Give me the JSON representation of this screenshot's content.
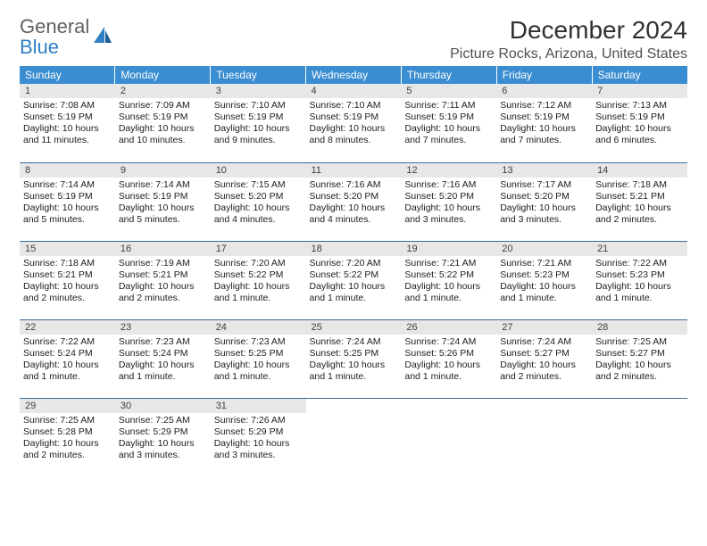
{
  "logo": {
    "line1": "General",
    "line2": "Blue"
  },
  "title": "December 2024",
  "location": "Picture Rocks, Arizona, United States",
  "day_headers": [
    "Sunday",
    "Monday",
    "Tuesday",
    "Wednesday",
    "Thursday",
    "Friday",
    "Saturday"
  ],
  "colors": {
    "header_bg": "#3a8dd0",
    "header_text": "#ffffff",
    "daynum_bg": "#e7e7e7",
    "row_divider": "#3a6d9b",
    "logo_gray": "#606060",
    "logo_blue": "#2f7fc4"
  },
  "weeks": [
    [
      {
        "num": "1",
        "sunrise": "Sunrise: 7:08 AM",
        "sunset": "Sunset: 5:19 PM",
        "daylight": "Daylight: 10 hours and 11 minutes."
      },
      {
        "num": "2",
        "sunrise": "Sunrise: 7:09 AM",
        "sunset": "Sunset: 5:19 PM",
        "daylight": "Daylight: 10 hours and 10 minutes."
      },
      {
        "num": "3",
        "sunrise": "Sunrise: 7:10 AM",
        "sunset": "Sunset: 5:19 PM",
        "daylight": "Daylight: 10 hours and 9 minutes."
      },
      {
        "num": "4",
        "sunrise": "Sunrise: 7:10 AM",
        "sunset": "Sunset: 5:19 PM",
        "daylight": "Daylight: 10 hours and 8 minutes."
      },
      {
        "num": "5",
        "sunrise": "Sunrise: 7:11 AM",
        "sunset": "Sunset: 5:19 PM",
        "daylight": "Daylight: 10 hours and 7 minutes."
      },
      {
        "num": "6",
        "sunrise": "Sunrise: 7:12 AM",
        "sunset": "Sunset: 5:19 PM",
        "daylight": "Daylight: 10 hours and 7 minutes."
      },
      {
        "num": "7",
        "sunrise": "Sunrise: 7:13 AM",
        "sunset": "Sunset: 5:19 PM",
        "daylight": "Daylight: 10 hours and 6 minutes."
      }
    ],
    [
      {
        "num": "8",
        "sunrise": "Sunrise: 7:14 AM",
        "sunset": "Sunset: 5:19 PM",
        "daylight": "Daylight: 10 hours and 5 minutes."
      },
      {
        "num": "9",
        "sunrise": "Sunrise: 7:14 AM",
        "sunset": "Sunset: 5:19 PM",
        "daylight": "Daylight: 10 hours and 5 minutes."
      },
      {
        "num": "10",
        "sunrise": "Sunrise: 7:15 AM",
        "sunset": "Sunset: 5:20 PM",
        "daylight": "Daylight: 10 hours and 4 minutes."
      },
      {
        "num": "11",
        "sunrise": "Sunrise: 7:16 AM",
        "sunset": "Sunset: 5:20 PM",
        "daylight": "Daylight: 10 hours and 4 minutes."
      },
      {
        "num": "12",
        "sunrise": "Sunrise: 7:16 AM",
        "sunset": "Sunset: 5:20 PM",
        "daylight": "Daylight: 10 hours and 3 minutes."
      },
      {
        "num": "13",
        "sunrise": "Sunrise: 7:17 AM",
        "sunset": "Sunset: 5:20 PM",
        "daylight": "Daylight: 10 hours and 3 minutes."
      },
      {
        "num": "14",
        "sunrise": "Sunrise: 7:18 AM",
        "sunset": "Sunset: 5:21 PM",
        "daylight": "Daylight: 10 hours and 2 minutes."
      }
    ],
    [
      {
        "num": "15",
        "sunrise": "Sunrise: 7:18 AM",
        "sunset": "Sunset: 5:21 PM",
        "daylight": "Daylight: 10 hours and 2 minutes."
      },
      {
        "num": "16",
        "sunrise": "Sunrise: 7:19 AM",
        "sunset": "Sunset: 5:21 PM",
        "daylight": "Daylight: 10 hours and 2 minutes."
      },
      {
        "num": "17",
        "sunrise": "Sunrise: 7:20 AM",
        "sunset": "Sunset: 5:22 PM",
        "daylight": "Daylight: 10 hours and 1 minute."
      },
      {
        "num": "18",
        "sunrise": "Sunrise: 7:20 AM",
        "sunset": "Sunset: 5:22 PM",
        "daylight": "Daylight: 10 hours and 1 minute."
      },
      {
        "num": "19",
        "sunrise": "Sunrise: 7:21 AM",
        "sunset": "Sunset: 5:22 PM",
        "daylight": "Daylight: 10 hours and 1 minute."
      },
      {
        "num": "20",
        "sunrise": "Sunrise: 7:21 AM",
        "sunset": "Sunset: 5:23 PM",
        "daylight": "Daylight: 10 hours and 1 minute."
      },
      {
        "num": "21",
        "sunrise": "Sunrise: 7:22 AM",
        "sunset": "Sunset: 5:23 PM",
        "daylight": "Daylight: 10 hours and 1 minute."
      }
    ],
    [
      {
        "num": "22",
        "sunrise": "Sunrise: 7:22 AM",
        "sunset": "Sunset: 5:24 PM",
        "daylight": "Daylight: 10 hours and 1 minute."
      },
      {
        "num": "23",
        "sunrise": "Sunrise: 7:23 AM",
        "sunset": "Sunset: 5:24 PM",
        "daylight": "Daylight: 10 hours and 1 minute."
      },
      {
        "num": "24",
        "sunrise": "Sunrise: 7:23 AM",
        "sunset": "Sunset: 5:25 PM",
        "daylight": "Daylight: 10 hours and 1 minute."
      },
      {
        "num": "25",
        "sunrise": "Sunrise: 7:24 AM",
        "sunset": "Sunset: 5:25 PM",
        "daylight": "Daylight: 10 hours and 1 minute."
      },
      {
        "num": "26",
        "sunrise": "Sunrise: 7:24 AM",
        "sunset": "Sunset: 5:26 PM",
        "daylight": "Daylight: 10 hours and 1 minute."
      },
      {
        "num": "27",
        "sunrise": "Sunrise: 7:24 AM",
        "sunset": "Sunset: 5:27 PM",
        "daylight": "Daylight: 10 hours and 2 minutes."
      },
      {
        "num": "28",
        "sunrise": "Sunrise: 7:25 AM",
        "sunset": "Sunset: 5:27 PM",
        "daylight": "Daylight: 10 hours and 2 minutes."
      }
    ],
    [
      {
        "num": "29",
        "sunrise": "Sunrise: 7:25 AM",
        "sunset": "Sunset: 5:28 PM",
        "daylight": "Daylight: 10 hours and 2 minutes."
      },
      {
        "num": "30",
        "sunrise": "Sunrise: 7:25 AM",
        "sunset": "Sunset: 5:29 PM",
        "daylight": "Daylight: 10 hours and 3 minutes."
      },
      {
        "num": "31",
        "sunrise": "Sunrise: 7:26 AM",
        "sunset": "Sunset: 5:29 PM",
        "daylight": "Daylight: 10 hours and 3 minutes."
      },
      null,
      null,
      null,
      null
    ]
  ]
}
